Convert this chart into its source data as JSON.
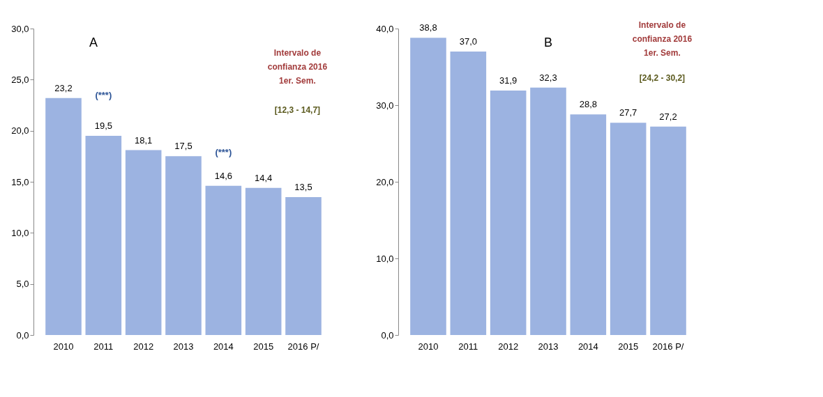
{
  "chart_data": [
    {
      "type": "bar",
      "categories": [
        "2010",
        "2011",
        "2012",
        "2013",
        "2014",
        "2015",
        "2016 P/"
      ],
      "values": [
        23.2,
        19.5,
        18.1,
        17.5,
        14.6,
        14.4,
        13.5
      ],
      "color": "#9cb3e1",
      "value_labels": [
        "23,2",
        "19,5",
        "18,1",
        "17,5",
        "14,6",
        "14,4",
        "13,5"
      ],
      "ylim": [
        0,
        30
      ],
      "yticks": [
        {
          "value": 0,
          "label": "0,0"
        },
        {
          "value": 5,
          "label": "5,0"
        },
        {
          "value": 10,
          "label": "10,0"
        },
        {
          "value": 15,
          "label": "15,0"
        },
        {
          "value": 20,
          "label": "20,0"
        },
        {
          "value": 25,
          "label": "25,0"
        },
        {
          "value": 30,
          "label": "30,0"
        }
      ],
      "grid": false,
      "annotations": [
        "A",
        "Intervalo de\nconfianza 2016\n1er. Sem.",
        "[12,3 - 14,7]",
        "(***)",
        "(***)"
      ]
    },
    {
      "type": "bar",
      "categories": [
        "2010",
        "2011",
        "2012",
        "2013",
        "2014",
        "2015",
        "2016 P/"
      ],
      "values": [
        38.8,
        37.0,
        31.9,
        32.3,
        28.8,
        27.7,
        27.2
      ],
      "color": "#9cb3e1",
      "value_labels": [
        "38,8",
        "37,0",
        "31,9",
        "32,3",
        "28,8",
        "27,7",
        "27,2"
      ],
      "ylim": [
        0,
        40
      ],
      "yticks": [
        {
          "value": 0,
          "label": "0,0"
        },
        {
          "value": 10,
          "label": "10,0"
        },
        {
          "value": 20,
          "label": "20,0"
        },
        {
          "value": 30,
          "label": "30,0"
        },
        {
          "value": 40,
          "label": "40,0"
        }
      ],
      "grid": false,
      "annotations": [
        "B",
        "Intervalo de\nconfianza 2016\n1er. Sem.",
        "[24,2 - 30,2]"
      ]
    }
  ]
}
